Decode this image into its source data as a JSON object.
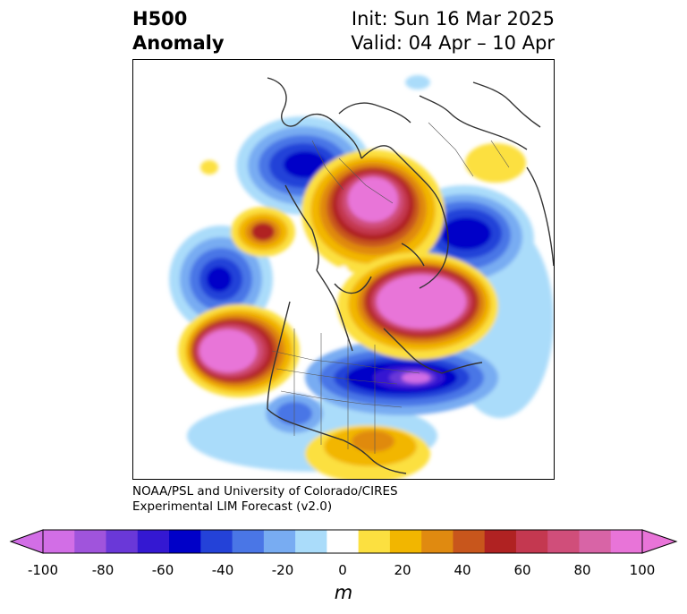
{
  "header": {
    "variable": "H500",
    "subtitle": "Anomaly",
    "init": "Init: Sun 16 Mar 2025",
    "valid": "Valid: 04 Apr – 10 Apr"
  },
  "credits": {
    "line1": "NOAA/PSL and University of Colorado/CIRES",
    "line2": "Experimental LIM Forecast (v2.0)"
  },
  "colorbar": {
    "unit": "m",
    "ticks": [
      "-100",
      "-80",
      "-60",
      "-40",
      "-20",
      "0",
      "20",
      "40",
      "60",
      "80",
      "100"
    ],
    "levels": [
      -100,
      -90,
      -80,
      -70,
      -60,
      -50,
      -40,
      -30,
      -20,
      -10,
      10,
      20,
      30,
      40,
      50,
      60,
      70,
      80,
      90,
      100
    ],
    "colors": [
      "#d26ee6",
      "#a054dc",
      "#6a38d8",
      "#3418d2",
      "#0000c8",
      "#2442d8",
      "#4a76e6",
      "#78acf2",
      "#aadcfa",
      "#ffffff",
      "#fce040",
      "#f2b600",
      "#e08a10",
      "#c8561c",
      "#b02222",
      "#c43850",
      "#d04e7a",
      "#d864a6",
      "#e874d8"
    ],
    "extend_low_color": "#d26ee6",
    "extend_high_color": "#e874d8"
  },
  "map": {
    "projection": "north polar stereographic",
    "field": "500 hPa geopotential height anomaly"
  }
}
